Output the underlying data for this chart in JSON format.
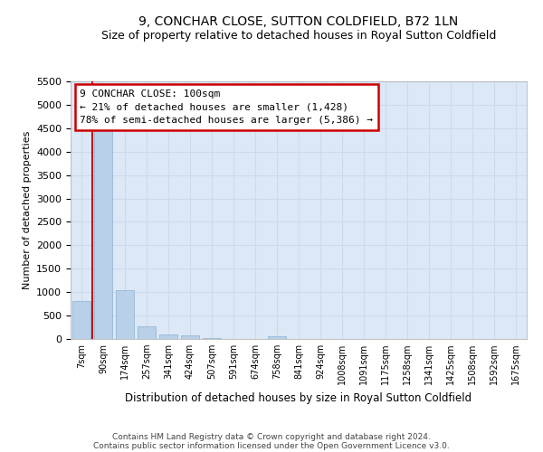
{
  "title": "9, CONCHAR CLOSE, SUTTON COLDFIELD, B72 1LN",
  "subtitle": "Size of property relative to detached houses in Royal Sutton Coldfield",
  "xlabel": "Distribution of detached houses by size in Royal Sutton Coldfield",
  "ylabel": "Number of detached properties",
  "categories": [
    "7sqm",
    "90sqm",
    "174sqm",
    "257sqm",
    "341sqm",
    "424sqm",
    "507sqm",
    "591sqm",
    "674sqm",
    "758sqm",
    "841sqm",
    "924sqm",
    "1008sqm",
    "1091sqm",
    "1175sqm",
    "1258sqm",
    "1341sqm",
    "1425sqm",
    "1508sqm",
    "1592sqm",
    "1675sqm"
  ],
  "values": [
    820,
    4600,
    1050,
    270,
    100,
    80,
    20,
    0,
    0,
    55,
    0,
    0,
    0,
    0,
    0,
    0,
    0,
    0,
    0,
    0,
    0
  ],
  "bar_color": "#b8d0e8",
  "bar_edge_color": "#8ab0d0",
  "grid_color": "#ccdaeb",
  "background_color": "#dce8f5",
  "vline_color": "#cc0000",
  "vline_x": 0.5,
  "annotation_text": "9 CONCHAR CLOSE: 100sqm\n← 21% of detached houses are smaller (1,428)\n78% of semi-detached houses are larger (5,386) →",
  "annotation_box_color": "#cc0000",
  "ylim": [
    0,
    5500
  ],
  "yticks": [
    0,
    500,
    1000,
    1500,
    2000,
    2500,
    3000,
    3500,
    4000,
    4500,
    5000,
    5500
  ],
  "footer_line1": "Contains HM Land Registry data © Crown copyright and database right 2024.",
  "footer_line2": "Contains public sector information licensed under the Open Government Licence v3.0.",
  "title_fontsize": 10,
  "subtitle_fontsize": 9
}
